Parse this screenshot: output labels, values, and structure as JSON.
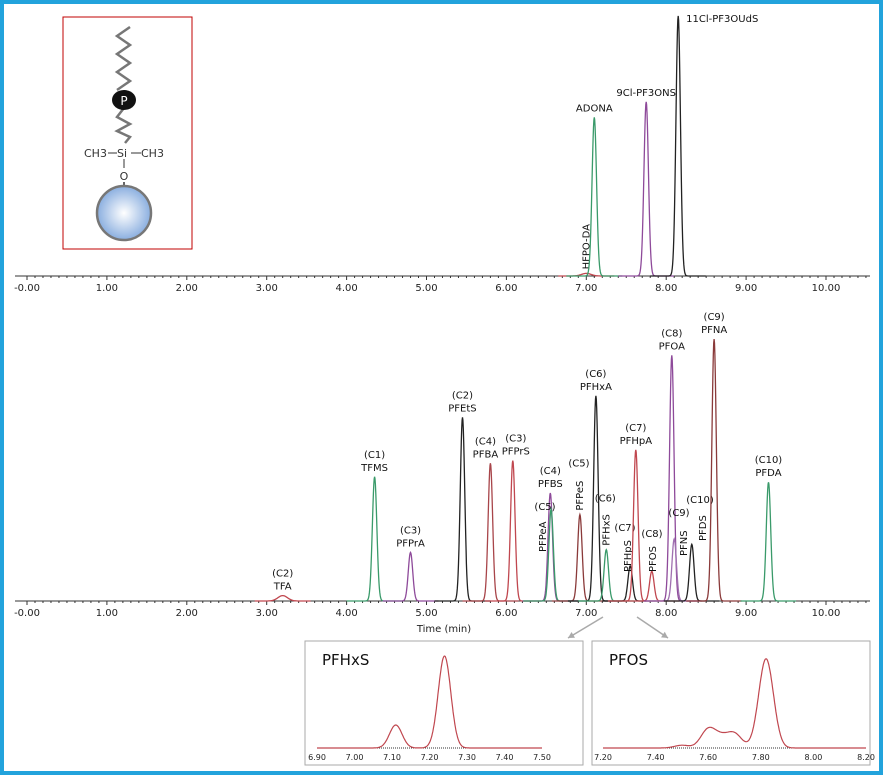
{
  "chart_data": [
    {
      "type": "line",
      "subtype": "chromatogram",
      "xlim": [
        0,
        10.5
      ],
      "x_ticks": [
        "-0.00",
        "1.00",
        "2.00",
        "3.00",
        "4.00",
        "5.00",
        "6.00",
        "7.00",
        "8.00",
        "9.00",
        "10.00"
      ],
      "y_axis_shown": false,
      "peaks": [
        {
          "label": "HFPO-DA",
          "chain": "",
          "time": 7.0,
          "intensity": 1,
          "color": "#c0474f",
          "rotated": true
        },
        {
          "label": "ADONA",
          "chain": "",
          "time": 7.1,
          "intensity": 61,
          "color": "#3a9a6a",
          "rotated": false
        },
        {
          "label": "9Cl-PF3ONS",
          "chain": "",
          "time": 7.75,
          "intensity": 67,
          "color": "#8e4a9a",
          "rotated": false
        },
        {
          "label": "11Cl-PF3OUdS",
          "chain": "",
          "time": 8.15,
          "intensity": 100,
          "color": "#222222",
          "rotated": false
        }
      ]
    },
    {
      "type": "line",
      "subtype": "chromatogram",
      "xlabel": "Time (min)",
      "xlim": [
        0,
        10.5
      ],
      "x_ticks": [
        "-0.00",
        "1.00",
        "2.00",
        "3.00",
        "4.00",
        "5.00",
        "6.00",
        "7.00",
        "8.00",
        "9.00",
        "10.00"
      ],
      "y_axis_shown": false,
      "peaks": [
        {
          "label": "TFA",
          "chain": "(C2)",
          "time": 3.2,
          "intensity": 2,
          "color": "#c0474f",
          "rotated": false
        },
        {
          "label": "TFMS",
          "chain": "(C1)",
          "time": 4.35,
          "intensity": 46,
          "color": "#3a9a6a",
          "rotated": false
        },
        {
          "label": "PFPrA",
          "chain": "(C3)",
          "time": 4.8,
          "intensity": 18,
          "color": "#8e4a9a",
          "rotated": false
        },
        {
          "label": "PFEtS",
          "chain": "(C2)",
          "time": 5.45,
          "intensity": 68,
          "color": "#222222",
          "rotated": false
        },
        {
          "label": "PFBA",
          "chain": "(C4)",
          "time": 5.8,
          "intensity": 51,
          "color": "#a8454a",
          "rotated": false
        },
        {
          "label": "PFPrS",
          "chain": "(C3)",
          "time": 6.08,
          "intensity": 52,
          "color": "#c0474f",
          "rotated": false
        },
        {
          "label": "PFBS",
          "chain": "(C4)",
          "time": 6.55,
          "intensity": 40,
          "color": "#8e4a9a",
          "rotated": false
        },
        {
          "label": "PFPeA",
          "chain": "(C5)",
          "time": 6.56,
          "intensity": 34,
          "color": "#3a9a6a",
          "rotated": true
        },
        {
          "label": "PFPeS",
          "chain": "(C5)",
          "time": 6.92,
          "intensity": 32,
          "color": "#8a3a3a",
          "rotated": true
        },
        {
          "label": "PFHxA",
          "chain": "(C6)",
          "time": 7.12,
          "intensity": 76,
          "color": "#222222",
          "rotated": false
        },
        {
          "label": "PFHxS",
          "chain": "(C6)",
          "time": 7.25,
          "intensity": 19,
          "color": "#3a9a6a",
          "rotated": true
        },
        {
          "label": "PFHpS",
          "chain": "(C7)",
          "time": 7.55,
          "intensity": 13,
          "color": "#222222",
          "rotated": true
        },
        {
          "label": "PFHpA",
          "chain": "(C7)",
          "time": 7.62,
          "intensity": 56,
          "color": "#c0474f",
          "rotated": false
        },
        {
          "label": "PFOS",
          "chain": "(C8)",
          "time": 7.82,
          "intensity": 11,
          "color": "#c0474f",
          "rotated": true
        },
        {
          "label": "PFOA",
          "chain": "(C8)",
          "time": 8.07,
          "intensity": 91,
          "color": "#8e4a9a",
          "rotated": false
        },
        {
          "label": "PFNS",
          "chain": "(C9)",
          "time": 8.1,
          "intensity": 23,
          "color": "#a070b0",
          "rotated": true
        },
        {
          "label": "PFDS",
          "chain": "(C10)",
          "time": 8.32,
          "intensity": 21,
          "color": "#222222",
          "rotated": true
        },
        {
          "label": "PFNA",
          "chain": "(C9)",
          "time": 8.6,
          "intensity": 97,
          "color": "#8a3a3a",
          "rotated": false
        },
        {
          "label": "PFDA",
          "chain": "(C10)",
          "time": 9.28,
          "intensity": 44,
          "color": "#3a9a6a",
          "rotated": false
        }
      ]
    },
    {
      "type": "line",
      "subtype": "chromatogram-inset",
      "title": "PFHxS",
      "xlim": [
        6.9,
        7.5
      ],
      "x_ticks": [
        "6.90",
        "7.00",
        "7.10",
        "7.20",
        "7.30",
        "7.40",
        "7.50"
      ],
      "color": "#c0474f",
      "peaks": [
        {
          "time": 7.11,
          "intensity": 25
        },
        {
          "time": 7.24,
          "intensity": 100
        }
      ]
    },
    {
      "type": "line",
      "subtype": "chromatogram-inset",
      "title": "PFOS",
      "xlim": [
        7.2,
        8.2
      ],
      "x_ticks": [
        "7.20",
        "7.40",
        "7.60",
        "7.80",
        "8.00",
        "8.20"
      ],
      "color": "#c0474f",
      "peaks": [
        {
          "time": 7.5,
          "intensity": 3
        },
        {
          "time": 7.6,
          "intensity": 20
        },
        {
          "time": 7.65,
          "intensity": 10
        },
        {
          "time": 7.7,
          "intensity": 15
        },
        {
          "time": 7.82,
          "intensity": 97
        }
      ]
    }
  ],
  "structure_diagram": {
    "bead_label": "P",
    "left_group": "CH3",
    "center_atom": "Si",
    "right_group": "CH3",
    "linker_atom": "O"
  }
}
